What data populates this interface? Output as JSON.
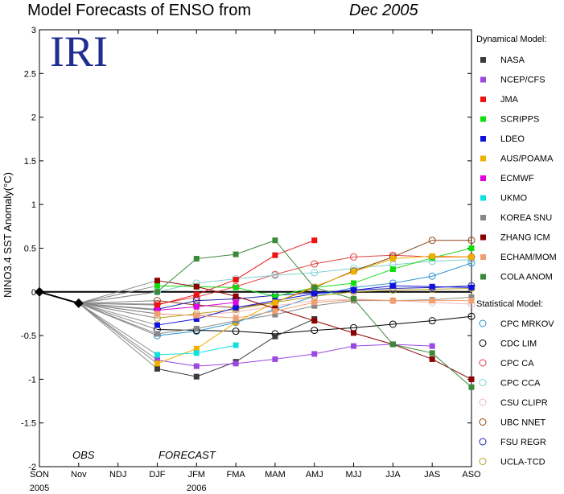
{
  "chart_data": {
    "type": "line",
    "title": "Model Forecasts of ENSO from",
    "title_date": "Dec 2005",
    "ylabel": "NINO3.4 SST Anomaly(°C)",
    "ylim": [
      -2,
      3
    ],
    "yticks": [
      "-2",
      "-1.5",
      "-1",
      "-0.5",
      "0",
      "0.5",
      "1",
      "1.5",
      "2",
      "2.5",
      "3"
    ],
    "ytick_values": [
      -2,
      -1.5,
      -1,
      -0.5,
      0,
      0.5,
      1,
      1.5,
      2,
      2.5,
      3
    ],
    "categories": [
      "SON",
      "Nov",
      "NDJ",
      "DJF",
      "JFM",
      "FMA",
      "MAM",
      "AMJ",
      "MJJ",
      "JJA",
      "JAS",
      "ASO"
    ],
    "year_labels": [
      {
        "label": "2005",
        "at": "SON"
      },
      {
        "label": "2006",
        "at": "JFM"
      }
    ],
    "annotations": {
      "obs": "OBS",
      "forecast": "FORECAST"
    },
    "logo": "IRI",
    "observed": {
      "x": [
        "SON",
        "Nov"
      ],
      "values": [
        0.0,
        -0.13
      ],
      "color": "#000000"
    },
    "zero_line": {
      "x": [
        "SON",
        "ASO"
      ],
      "value": 0.0
    },
    "legend_dynamical_title": "Dynamical Model:",
    "legend_statistical_title": "Statistical Model:",
    "dynamical": [
      {
        "name": "NASA",
        "color": "#3b3b3b",
        "values": [
          -0.88,
          -0.97,
          -0.8,
          -0.51,
          -0.31,
          null,
          null,
          null,
          null
        ]
      },
      {
        "name": "NCEP/CFS",
        "color": "#9b48e0",
        "values": [
          -0.78,
          -0.85,
          -0.82,
          -0.77,
          -0.71,
          -0.62,
          -0.6,
          -0.62,
          null
        ]
      },
      {
        "name": "JMA",
        "color": "#ee1111",
        "values": [
          -0.15,
          -0.03,
          0.14,
          0.42,
          0.59,
          null,
          null,
          null,
          null
        ]
      },
      {
        "name": "SCRIPPS",
        "color": "#11dd11",
        "values": [
          0.07,
          0.06,
          0.05,
          -0.05,
          0.05,
          0.1,
          0.26,
          0.39,
          0.5
        ]
      },
      {
        "name": "LDEO",
        "color": "#1111dd",
        "values": [
          -0.38,
          -0.31,
          -0.18,
          -0.1,
          -0.02,
          0.02,
          0.07,
          0.06,
          0.05
        ]
      },
      {
        "name": "AUS/POAMA",
        "color": "#f0b000",
        "values": [
          -0.82,
          -0.65,
          -0.35,
          -0.12,
          0.06,
          0.23,
          0.38,
          0.41,
          0.4
        ]
      },
      {
        "name": "ECMWF",
        "color": "#e000e0",
        "values": [
          -0.21,
          -0.17,
          -0.12,
          null,
          null,
          null,
          null,
          null,
          null
        ]
      },
      {
        "name": "UKMO",
        "color": "#11e0e0",
        "values": [
          -0.72,
          -0.7,
          -0.61,
          null,
          null,
          null,
          null,
          null,
          null
        ]
      },
      {
        "name": "KOREA SNU",
        "color": "#888888",
        "values": [
          -0.48,
          -0.42,
          -0.33,
          -0.26,
          -0.16,
          -0.1,
          -0.1,
          -0.09,
          -0.06
        ]
      },
      {
        "name": "ZHANG ICM",
        "color": "#8b0000",
        "values": [
          0.13,
          0.06,
          -0.05,
          -0.19,
          -0.33,
          -0.47,
          -0.6,
          -0.77,
          -1.0
        ]
      },
      {
        "name": "ECHAM/MOM",
        "color": "#f0a070",
        "values": [
          -0.25,
          -0.27,
          -0.3,
          -0.22,
          -0.12,
          -0.09,
          -0.1,
          -0.1,
          -0.1
        ]
      },
      {
        "name": "COLA ANOM",
        "color": "#3a8a3a",
        "values": [
          0.0,
          0.38,
          0.43,
          0.59,
          0.05,
          -0.08,
          -0.6,
          -0.7,
          -1.09
        ]
      }
    ],
    "statistical": [
      {
        "name": "CPC MRKOV",
        "color": "#2a90d0",
        "values": [
          -0.5,
          -0.45,
          -0.35,
          -0.2,
          -0.05,
          0.05,
          0.1,
          0.18,
          0.33
        ]
      },
      {
        "name": "CDC LIM",
        "color": "#000000",
        "values": [
          -0.43,
          -0.44,
          -0.45,
          -0.48,
          -0.44,
          -0.41,
          -0.37,
          -0.33,
          -0.28
        ]
      },
      {
        "name": "CPC CA",
        "color": "#e04040",
        "values": [
          -0.14,
          -0.06,
          0.06,
          0.2,
          0.32,
          0.4,
          0.42,
          0.4,
          0.4
        ]
      },
      {
        "name": "CPC CCA",
        "color": "#80d0d0",
        "values": [
          0.0,
          0.1,
          0.15,
          0.19,
          0.22,
          0.27,
          0.31,
          0.35,
          0.37
        ]
      },
      {
        "name": "CSU CLIPR",
        "color": "#f0b8c0",
        "values": [
          -0.25,
          -0.27,
          -0.23,
          -0.16,
          -0.1,
          -0.08,
          -0.1,
          -0.12,
          -0.14
        ]
      },
      {
        "name": "UBC NNET",
        "color": "#8b4513",
        "values": [
          -0.1,
          -0.15,
          -0.18,
          -0.12,
          0.05,
          0.24,
          0.4,
          0.59,
          0.59
        ]
      },
      {
        "name": "FSU REGR",
        "color": "#2020b0",
        "values": [
          -0.2,
          -0.1,
          -0.08,
          -0.04,
          -0.01,
          0.02,
          0.04,
          0.05,
          0.07
        ]
      },
      {
        "name": "UCLA-TCD",
        "color": "#b8a020",
        "values": [
          -0.3,
          -0.25,
          -0.2,
          -0.12,
          -0.05,
          0.0,
          0.02,
          0.03,
          0.04
        ]
      }
    ]
  }
}
